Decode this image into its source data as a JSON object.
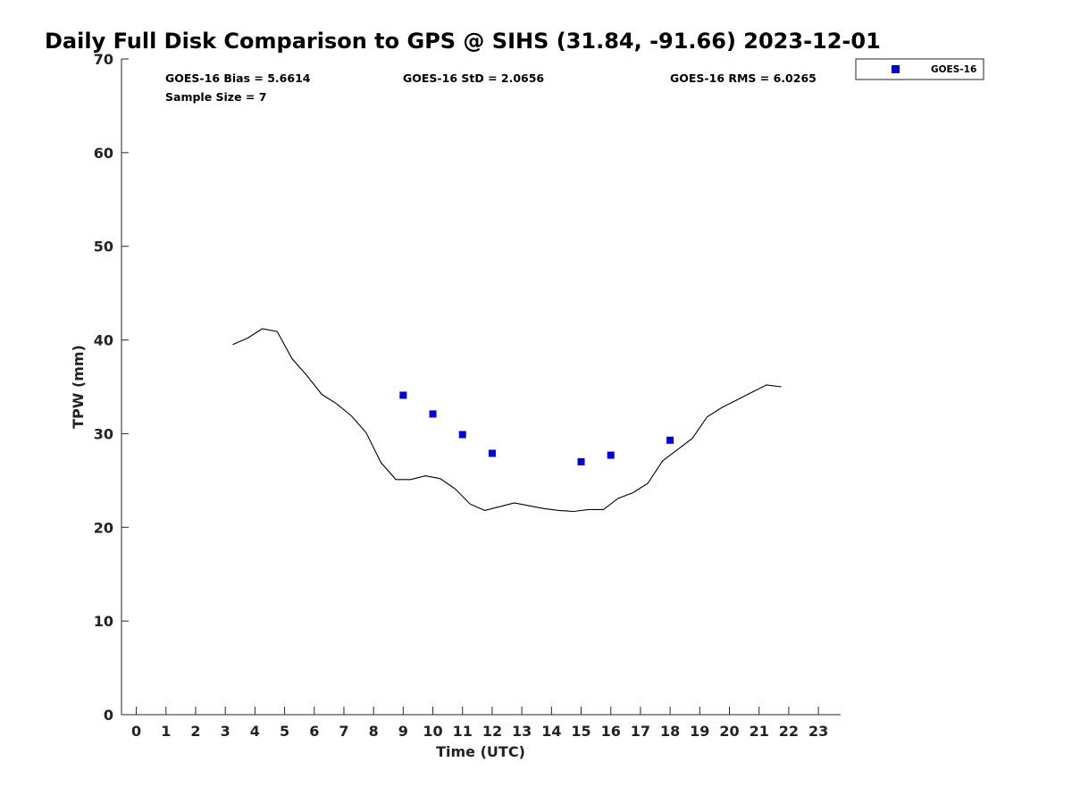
{
  "chart_data": {
    "type": "scatter",
    "title": "Daily Full Disk Comparison to GPS @ SIHS (31.84, -91.66) 2023-12-01",
    "xlabel": "Time (UTC)",
    "ylabel": "TPW (mm)",
    "xlim": [
      -0.5,
      23.75
    ],
    "ylim": [
      0,
      70
    ],
    "x_ticks": [
      "0",
      "1",
      "2",
      "3",
      "4",
      "5",
      "6",
      "7",
      "8",
      "9",
      "10",
      "11",
      "12",
      "13",
      "14",
      "15",
      "16",
      "17",
      "18",
      "19",
      "20",
      "21",
      "22",
      "23"
    ],
    "y_ticks": [
      "0",
      "10",
      "20",
      "30",
      "40",
      "50",
      "60",
      "70"
    ],
    "grid": false,
    "legend_position": "outside-top-right",
    "stats": {
      "bias": "GOES-16 Bias = 5.6614",
      "std": "GOES-16 StD = 2.0656",
      "rms": "GOES-16 RMS = 6.0265",
      "sample": "Sample Size = 7"
    },
    "series": [
      {
        "name": "GOES-16",
        "kind": "scatter",
        "color": "#0000dd",
        "x": [
          9,
          10,
          11,
          12,
          15,
          16,
          18
        ],
        "y": [
          34.1,
          32.1,
          29.9,
          27.9,
          27.0,
          27.7,
          29.3
        ]
      },
      {
        "kind": "line",
        "color": "#000000",
        "x": [
          3.25,
          3.75,
          4.25,
          4.75,
          5.25,
          5.75,
          6.25,
          6.75,
          7.25,
          7.75,
          8.25,
          8.75,
          9.25,
          9.75,
          10.25,
          10.75,
          11.25,
          11.75,
          12.25,
          12.75,
          13.25,
          13.75,
          14.25,
          14.75,
          15.25,
          15.75,
          16.25,
          16.75,
          17.25,
          17.75,
          18.25,
          18.75,
          19.25,
          19.75,
          20.25,
          20.75,
          21.25,
          21.75
        ],
        "y": [
          39.5,
          40.2,
          41.2,
          40.9,
          38.0,
          36.2,
          34.2,
          33.2,
          31.9,
          30.1,
          26.9,
          25.1,
          25.1,
          25.5,
          25.2,
          24.1,
          22.5,
          21.8,
          22.2,
          22.6,
          22.3,
          22.0,
          21.8,
          21.7,
          21.9,
          21.9,
          23.1,
          23.7,
          24.7,
          27.1,
          28.3,
          29.5,
          31.8,
          32.8,
          33.6,
          34.4,
          35.2,
          35.0
        ]
      }
    ]
  }
}
